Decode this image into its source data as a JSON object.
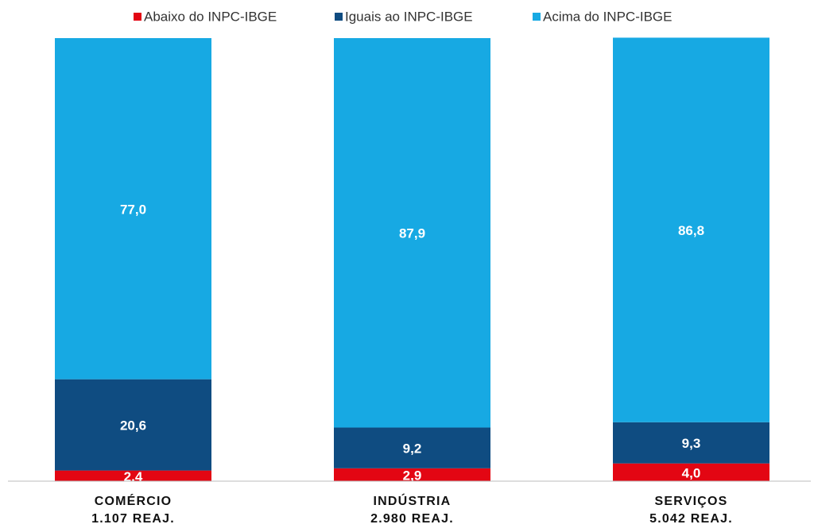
{
  "chart_data": {
    "type": "stacked_bar",
    "categories": [
      "COMÉRCIO\n1.107 REAJ.",
      "INDÚSTRIA\n2.980 REAJ.",
      "SERVIÇOS\n5.042 REAJ."
    ],
    "series": [
      {
        "name": "Abaixo do INPC-IBGE",
        "color": "#e30613",
        "values": [
          2.4,
          2.9,
          4.0
        ],
        "value_labels": [
          "2,4",
          "2,9",
          "4,0"
        ]
      },
      {
        "name": "Iguais ao INPC-IBGE",
        "color": "#0f4c81",
        "values": [
          20.6,
          9.2,
          9.3
        ],
        "value_labels": [
          "20,6",
          "9,2",
          "9,3"
        ]
      },
      {
        "name": "Acima do INPC-IBGE",
        "color": "#17a9e3",
        "values": [
          77.0,
          87.9,
          86.8
        ],
        "value_labels": [
          "77,0",
          "87,9",
          "86,8"
        ]
      }
    ],
    "ylim": [
      0,
      100
    ],
    "legend": "top"
  }
}
